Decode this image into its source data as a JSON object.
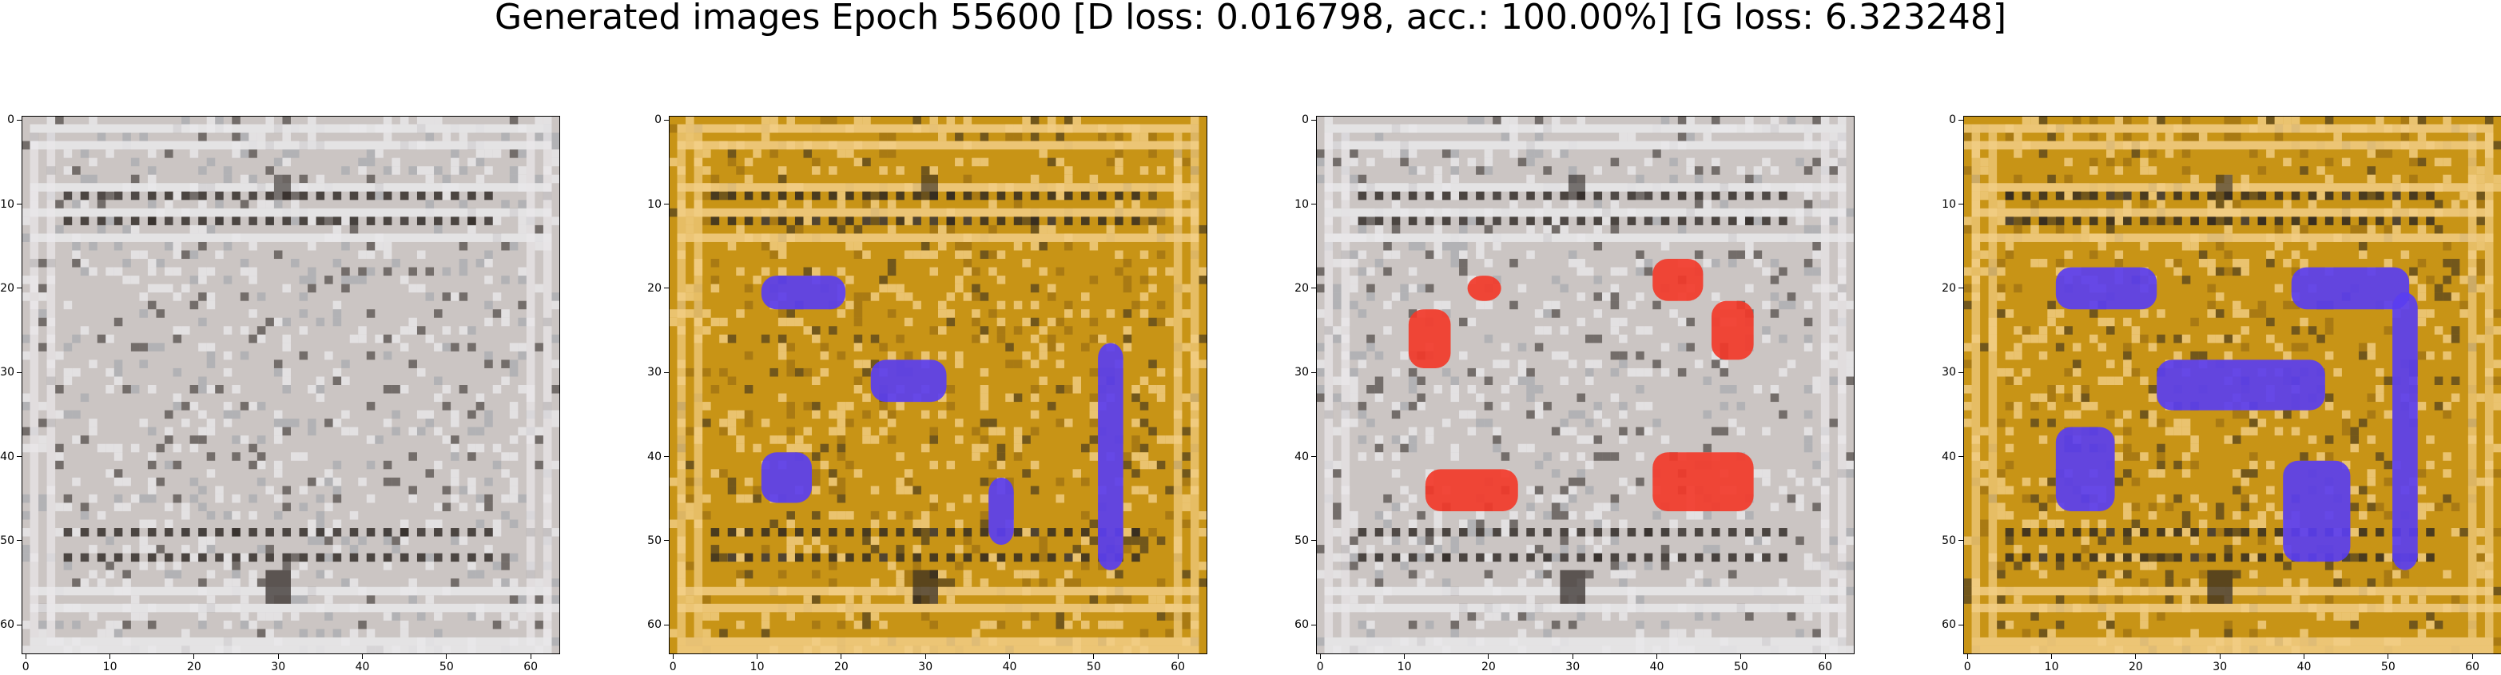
{
  "figure": {
    "title": "Generated images Epoch 55600 [D loss: 0.016798, acc.: 100.00%] [G loss: 6.323248]"
  },
  "colors": {
    "gray_background": "#cbc5c3",
    "gold_background": "#c89416",
    "gold_stripe": "#f2ce86",
    "gray_stripe": "#e9e7ea",
    "dark_row": "#2b2421",
    "blue_block": "#5a3ef0",
    "red_block": "#f23a2a"
  },
  "chart_data": [
    {
      "type": "heatmap",
      "name": "generated-sample-1",
      "background": "gray",
      "xlim": [
        -0.5,
        63.5
      ],
      "ylim": [
        63.5,
        -0.5
      ],
      "xticks": [
        0,
        10,
        20,
        30,
        40,
        50,
        60
      ],
      "yticks": [
        0,
        10,
        20,
        30,
        40,
        50,
        60
      ],
      "blocks": []
    },
    {
      "type": "heatmap",
      "name": "generated-sample-2",
      "background": "gold",
      "xlim": [
        -0.5,
        63.5
      ],
      "ylim": [
        63.5,
        -0.5
      ],
      "xticks": [
        0,
        10,
        20,
        30,
        40,
        50,
        60
      ],
      "yticks": [
        0,
        10,
        20,
        30,
        40,
        50,
        60
      ],
      "blocks": [
        {
          "color": "blue",
          "x": [
            11,
            21
          ],
          "y": [
            19,
            23
          ]
        },
        {
          "color": "blue",
          "x": [
            24,
            33
          ],
          "y": [
            29,
            34
          ]
        },
        {
          "color": "blue",
          "x": [
            11,
            17
          ],
          "y": [
            40,
            46
          ]
        },
        {
          "color": "blue",
          "x": [
            38,
            41
          ],
          "y": [
            43,
            51
          ]
        },
        {
          "color": "blue",
          "x": [
            51,
            54
          ],
          "y": [
            27,
            54
          ]
        }
      ]
    },
    {
      "type": "heatmap",
      "name": "generated-sample-3",
      "background": "gray",
      "xlim": [
        -0.5,
        63.5
      ],
      "ylim": [
        63.5,
        -0.5
      ],
      "xticks": [
        0,
        10,
        20,
        30,
        40,
        50,
        60
      ],
      "yticks": [
        0,
        10,
        20,
        30,
        40,
        50,
        60
      ],
      "blocks": [
        {
          "color": "red",
          "x": [
            11,
            16
          ],
          "y": [
            23,
            30
          ]
        },
        {
          "color": "red",
          "x": [
            18,
            22
          ],
          "y": [
            19,
            22
          ]
        },
        {
          "color": "red",
          "x": [
            13,
            24
          ],
          "y": [
            42,
            47
          ]
        },
        {
          "color": "red",
          "x": [
            40,
            46
          ],
          "y": [
            17,
            22
          ]
        },
        {
          "color": "red",
          "x": [
            47,
            52
          ],
          "y": [
            22,
            29
          ]
        },
        {
          "color": "red",
          "x": [
            40,
            52
          ],
          "y": [
            40,
            47
          ]
        }
      ]
    },
    {
      "type": "heatmap",
      "name": "generated-sample-4",
      "background": "gold",
      "xlim": [
        -0.5,
        63.5
      ],
      "ylim": [
        63.5,
        -0.5
      ],
      "xticks": [
        0,
        10,
        20,
        30,
        40,
        50,
        60
      ],
      "yticks": [
        0,
        10,
        20,
        30,
        40,
        50,
        60
      ],
      "blocks": [
        {
          "color": "blue",
          "x": [
            11,
            23
          ],
          "y": [
            18,
            23
          ]
        },
        {
          "color": "blue",
          "x": [
            39,
            53
          ],
          "y": [
            18,
            23
          ]
        },
        {
          "color": "blue",
          "x": [
            51,
            54
          ],
          "y": [
            21,
            54
          ]
        },
        {
          "color": "blue",
          "x": [
            23,
            43
          ],
          "y": [
            29,
            35
          ]
        },
        {
          "color": "blue",
          "x": [
            11,
            18
          ],
          "y": [
            37,
            47
          ]
        },
        {
          "color": "blue",
          "x": [
            38,
            46
          ],
          "y": [
            41,
            53
          ]
        }
      ]
    }
  ]
}
